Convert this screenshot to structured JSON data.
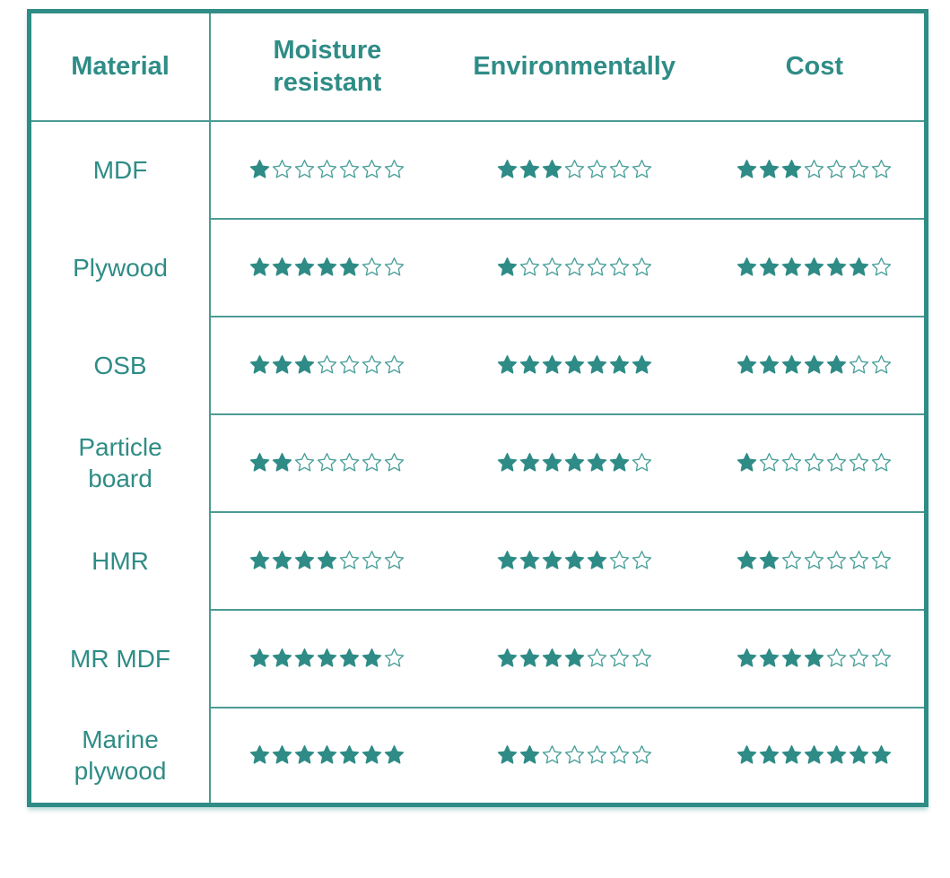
{
  "chart_data": {
    "type": "table",
    "columns": [
      "Material",
      "Moisture resistant",
      "Environmentally",
      "Cost"
    ],
    "rating_symbol": "star",
    "max_rating": 7,
    "rows": [
      {
        "material": "MDF",
        "moisture_resistant": 1,
        "environmentally": 3,
        "cost": 3
      },
      {
        "material": "Plywood",
        "moisture_resistant": 5,
        "environmentally": 1,
        "cost": 6
      },
      {
        "material": "OSB",
        "moisture_resistant": 3,
        "environmentally": 7,
        "cost": 5
      },
      {
        "material": "Particle board",
        "moisture_resistant": 2,
        "environmentally": 6,
        "cost": 1
      },
      {
        "material": "HMR",
        "moisture_resistant": 4,
        "environmentally": 5,
        "cost": 2
      },
      {
        "material": "MR MDF",
        "moisture_resistant": 6,
        "environmentally": 4,
        "cost": 4
      },
      {
        "material": "Marine plywood",
        "moisture_resistant": 7,
        "environmentally": 2,
        "cost": 7
      }
    ]
  },
  "colors": {
    "teal_text": "#2f8c86",
    "border": "#2f8c86",
    "line": "#4c9b95",
    "star_filled": "#2e8b86",
    "star_empty_outline": "#4aa09a",
    "background": "#ffffff"
  }
}
